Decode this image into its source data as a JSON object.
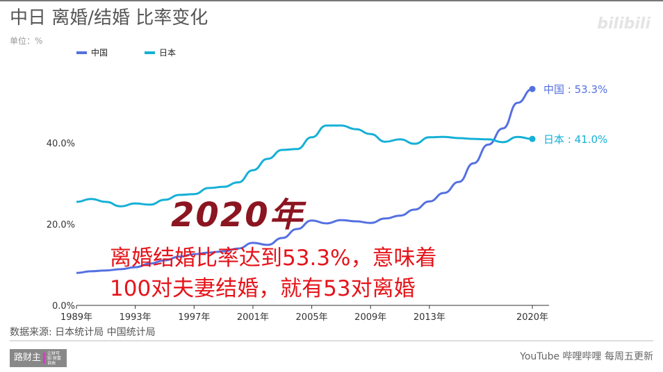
{
  "header": {
    "title": "中日 离婚/结婚 比率变化",
    "unit": "单位：%",
    "watermark": "bilibili"
  },
  "chart_data": {
    "type": "line",
    "title": "中日 离婚/结婚 比率变化",
    "ylabel": "%",
    "x": [
      1989,
      1990,
      1991,
      1992,
      1993,
      1994,
      1995,
      1996,
      1997,
      1998,
      1999,
      2000,
      2001,
      2002,
      2003,
      2004,
      2005,
      2006,
      2007,
      2008,
      2009,
      2010,
      2011,
      2012,
      2013,
      2014,
      2015,
      2016,
      2017,
      2018,
      2019,
      2020
    ],
    "xticks": [
      {
        "year": 1989,
        "label": "1989年"
      },
      {
        "year": 1993,
        "label": "1993年"
      },
      {
        "year": 1997,
        "label": "1997年"
      },
      {
        "year": 2001,
        "label": "2001年"
      },
      {
        "year": 2005,
        "label": "2005年"
      },
      {
        "year": 2009,
        "label": "2009年"
      },
      {
        "year": 2013,
        "label": "2013年"
      },
      {
        "year": 2020,
        "label": "2020年"
      }
    ],
    "yticks": [
      {
        "value": 0,
        "label": "0.0%"
      },
      {
        "value": 20,
        "label": "20.0%"
      },
      {
        "value": 40,
        "label": "40.0%"
      }
    ],
    "ylim": [
      0,
      60
    ],
    "xlim": [
      1989,
      2020
    ],
    "legend_position": "top-left",
    "series": [
      {
        "name": "中国",
        "color": "#5470e0",
        "end_label": "中国 : 53.3%",
        "values": [
          8.0,
          8.4,
          8.6,
          8.9,
          9.4,
          10.3,
          11.1,
          12.0,
          12.6,
          13.0,
          13.3,
          14.0,
          15.4,
          14.9,
          16.6,
          18.8,
          20.9,
          20.2,
          21.0,
          20.7,
          20.3,
          21.4,
          22.1,
          23.6,
          25.6,
          27.7,
          30.4,
          35.0,
          39.6,
          43.6,
          49.9,
          53.3
        ]
      },
      {
        "name": "日本",
        "color": "#15b0d6",
        "end_label": "日本 : 41.0%",
        "values": [
          25.5,
          26.2,
          25.5,
          24.4,
          25.1,
          24.8,
          26.0,
          27.2,
          27.4,
          28.9,
          29.2,
          30.3,
          33.3,
          36.1,
          38.3,
          38.5,
          41.4,
          44.3,
          44.3,
          43.4,
          42.2,
          40.3,
          40.9,
          39.8,
          41.4,
          41.5,
          41.2,
          41.0,
          40.9,
          40.2,
          41.5,
          41.0
        ]
      }
    ]
  },
  "overlay": {
    "year": "2020年",
    "line1": "离婚结婚比率达到53.3%，意味着",
    "line2": "100对夫妻结婚，就有53对离婚"
  },
  "footer": {
    "source": "数据来源: 日本统计局 中国统计局",
    "logo": "路财主",
    "logo_small": "让财可知 财富自由",
    "channels": "YouTube 哔哩哔哩 每周五更新"
  }
}
